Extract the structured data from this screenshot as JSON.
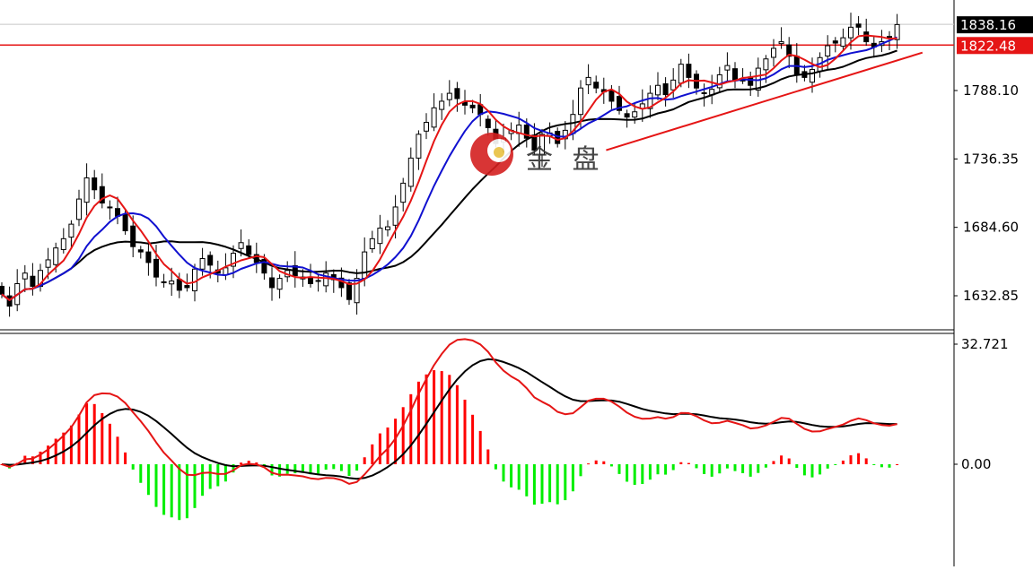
{
  "chart_data": [
    {
      "type": "candlestick",
      "panel": "price",
      "y_range": [
        1600,
        1855
      ],
      "y_ticks": [
        {
          "value": 1632.85,
          "label": "1632.85"
        },
        {
          "value": 1684.6,
          "label": "1684.60"
        },
        {
          "value": 1736.35,
          "label": "1736.35"
        },
        {
          "value": 1788.1,
          "label": "1788.10"
        }
      ],
      "price_tags": [
        {
          "value": 1838.16,
          "label": "1838.16",
          "color": "#000000"
        },
        {
          "value": 1822.48,
          "label": "1822.48",
          "color": "#e51515"
        }
      ],
      "horizontal_line": {
        "value": 1822.48,
        "color": "#e51515"
      },
      "gray_line": {
        "value": 1838.16,
        "color": "#c8c8c8"
      },
      "closes": [
        1634,
        1625,
        1642,
        1650,
        1640,
        1652,
        1660,
        1669,
        1676,
        1687,
        1706,
        1722,
        1713,
        1703,
        1700,
        1693,
        1682,
        1670,
        1666,
        1658,
        1647,
        1643,
        1644,
        1637,
        1639,
        1653,
        1661,
        1656,
        1650,
        1654,
        1665,
        1673,
        1664,
        1658,
        1650,
        1639,
        1646,
        1652,
        1648,
        1647,
        1642,
        1644,
        1650,
        1645,
        1639,
        1630,
        1646,
        1666,
        1676,
        1684,
        1685,
        1700,
        1718,
        1737,
        1755,
        1764,
        1775,
        1780,
        1786,
        1782,
        1777,
        1775,
        1770,
        1760,
        1748,
        1752,
        1758,
        1762,
        1752,
        1743,
        1755,
        1756,
        1748,
        1758,
        1770,
        1790,
        1798,
        1790,
        1787,
        1780,
        1773,
        1768,
        1772,
        1778,
        1786,
        1792,
        1785,
        1796,
        1808,
        1798,
        1790,
        1786,
        1789,
        1800,
        1807,
        1796,
        1796,
        1792,
        1805,
        1812,
        1820,
        1825,
        1814,
        1800,
        1798,
        1804,
        1813,
        1822,
        1824,
        1828,
        1836,
        1836,
        1825,
        1821,
        1825,
        1829,
        1838
      ],
      "ma_short": {
        "color": "#e51515",
        "period": 5
      },
      "ma_mid": {
        "color": "#1010d0",
        "period": 10
      },
      "ma_long": {
        "color": "#000000",
        "period": 20
      },
      "trendline": {
        "color": "#e51515",
        "from": {
          "index": 69,
          "value": 1743
        },
        "to": {
          "index": 103,
          "value": 1810
        }
      },
      "watermark_text": "金 盘"
    },
    {
      "type": "macd",
      "panel": "indicator",
      "y_ticks": [
        {
          "value": 32.721,
          "label": "32.721"
        },
        {
          "value": 0.0,
          "label": "0.00"
        }
      ],
      "histogram_colors": {
        "positive": "#ff0000",
        "negative": "#00ee00"
      },
      "line_colors": {
        "fast": "#e51515",
        "slow": "#000000"
      }
    }
  ]
}
